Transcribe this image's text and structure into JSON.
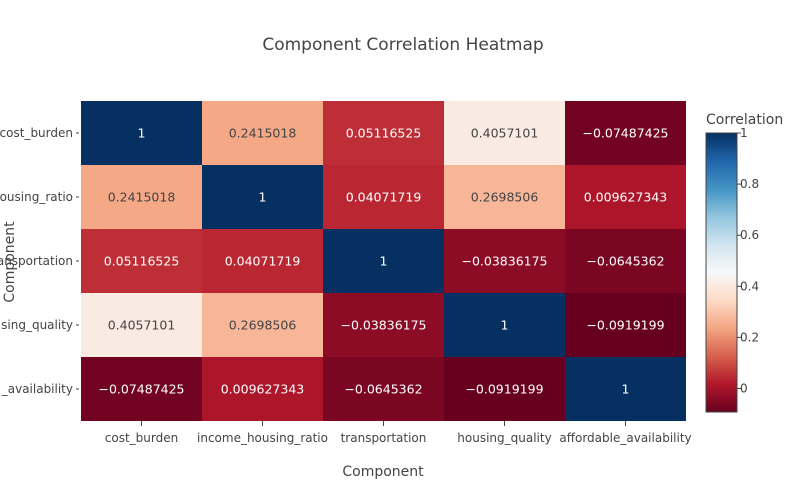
{
  "chart_data": {
    "type": "heatmap",
    "title": "Component Correlation Heatmap",
    "xlabel": "Component",
    "ylabel": "Component",
    "x_categories": [
      "cost_burden",
      "income_housing_ratio",
      "transportation",
      "housing_quality",
      "affordable_availability"
    ],
    "y_tick_labels": [
      "cost_burden",
      "housing_ratio",
      "ransportation",
      "sing_quality",
      "_availability"
    ],
    "z": [
      [
        1,
        0.2415018,
        0.05116525,
        0.4057101,
        -0.07487425
      ],
      [
        0.2415018,
        1,
        0.04071719,
        0.2698506,
        0.009627343
      ],
      [
        0.05116525,
        0.04071719,
        1,
        -0.03836175,
        -0.0645362
      ],
      [
        0.4057101,
        0.2698506,
        -0.03836175,
        1,
        -0.0919199
      ],
      [
        -0.07487425,
        0.009627343,
        -0.0645362,
        -0.0919199,
        1
      ]
    ],
    "cell_labels": [
      [
        "1",
        "0.2415018",
        "0.05116525",
        "0.4057101",
        "−0.07487425"
      ],
      [
        "0.2415018",
        "1",
        "0.04071719",
        "0.2698506",
        "0.009627343"
      ],
      [
        "0.05116525",
        "0.04071719",
        "1",
        "−0.03836175",
        "−0.0645362"
      ],
      [
        "0.4057101",
        "0.2698506",
        "−0.03836175",
        "1",
        "−0.0919199"
      ],
      [
        "−0.07487425",
        "0.009627343",
        "−0.0645362",
        "−0.0919199",
        "1"
      ]
    ],
    "zmin": -0.0919199,
    "zmax": 1,
    "colorscale": "RdBu",
    "colorbar": {
      "title": "Correlation",
      "ticks": [
        0,
        0.2,
        0.4,
        0.6,
        0.8,
        1
      ]
    },
    "colors": {
      "scale_stops": [
        [
          0,
          "#67001f"
        ],
        [
          0.1,
          "#b2182b"
        ],
        [
          0.2,
          "#d6604d"
        ],
        [
          0.3,
          "#f4a582"
        ],
        [
          0.4,
          "#fddbc7"
        ],
        [
          0.5,
          "#f7f7f7"
        ],
        [
          0.6,
          "#d1e5f0"
        ],
        [
          0.7,
          "#92c5de"
        ],
        [
          0.8,
          "#4393c3"
        ],
        [
          0.9,
          "#2166ac"
        ],
        [
          1,
          "#053061"
        ]
      ]
    }
  }
}
